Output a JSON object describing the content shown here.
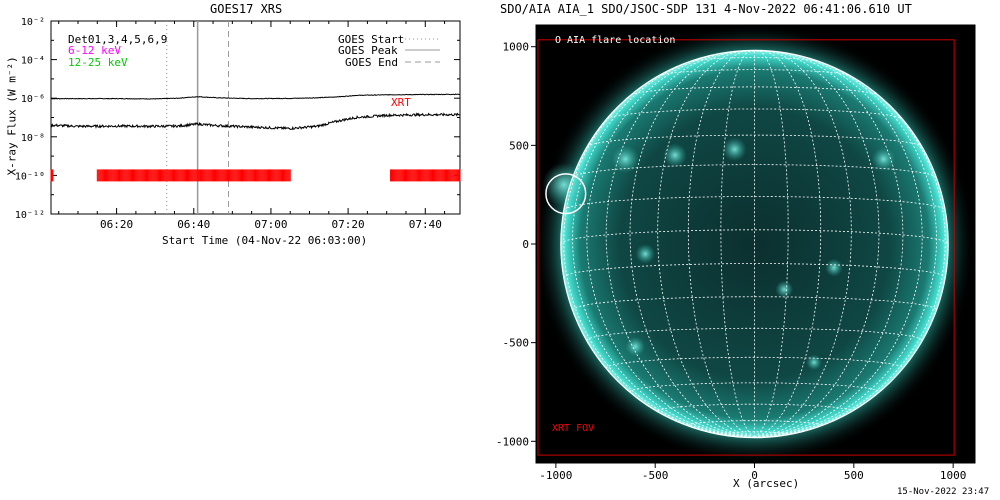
{
  "left_panel": {
    "title": "GOES17 XRS",
    "ylabel": "X-ray Flux (W m⁻²)",
    "xlabel": "Start Time (04-Nov-22 06:03:00)",
    "det_label": "Det01,3,4,5,6,9",
    "band_1": "6-12 keV",
    "band_2": "12-25 keV",
    "legend": {
      "start": "GOES Start",
      "peak": "GOES Peak",
      "end": "GOES End"
    },
    "xrt_label": "XRT"
  },
  "right_panel": {
    "title": "SDO/AIA AIA_1 SDO/JSOC-SDP 131  4-Nov-2022 06:41:06.610 UT",
    "flare_label": "O AIA flare location",
    "fov_label": "XRT FOV",
    "xlabel": "X (arcsec)"
  },
  "footer_timestamp": "15-Nov-2022 23:47",
  "colors": {
    "band_1": "#ff00ff",
    "band_2": "#00cc00",
    "xrt": "#ff0000",
    "sun_core": "#0a3a38",
    "sun_limb": "#3fd6c8"
  },
  "chart_data": [
    {
      "type": "line",
      "title": "GOES17 XRS",
      "xlabel": "Start Time (04-Nov-22 06:03:00)",
      "ylabel": "X-ray Flux (W m⁻²)",
      "yscale": "log",
      "xlim": [
        "06:03",
        "07:49"
      ],
      "ylim": [
        1e-12,
        0.01
      ],
      "x_ticks": [
        "06:20",
        "06:40",
        "07:00",
        "07:20",
        "07:40"
      ],
      "y_ticks": [
        "10⁻¹²",
        "10⁻¹⁰",
        "10⁻⁸",
        "10⁻⁶",
        "10⁻⁴",
        "10⁻²"
      ],
      "markers": {
        "goes_start": "06:33",
        "goes_peak": "06:41",
        "goes_end": "06:49"
      },
      "series": [
        {
          "x": [
            "06:03",
            "06:10",
            "06:20",
            "06:30",
            "06:36",
            "06:41",
            "06:46",
            "06:55",
            "07:05",
            "07:12",
            "07:18",
            "07:22",
            "07:30",
            "07:40",
            "07:49"
          ],
          "values": [
            9.5e-07,
            9.5e-07,
            9.5e-07,
            9.2e-07,
            1e-06,
            1.2e-06,
            1.05e-06,
            9.5e-07,
            9.8e-07,
            1.05e-06,
            1.2e-06,
            1.4e-06,
            1.5e-06,
            1.55e-06,
            1.6e-06
          ]
        },
        {
          "x": [
            "06:03",
            "06:10",
            "06:20",
            "06:30",
            "06:36",
            "06:41",
            "06:46",
            "06:55",
            "07:05",
            "07:12",
            "07:18",
            "07:22",
            "07:30",
            "07:40",
            "07:49"
          ],
          "values": [
            4e-08,
            3.5e-08,
            3.6e-08,
            3.5e-08,
            3.6e-08,
            4.6e-08,
            3.8e-08,
            3.2e-08,
            2.7e-08,
            3.5e-08,
            7e-08,
            1e-07,
            1.3e-07,
            1.4e-07,
            1.4e-07
          ]
        }
      ],
      "xrt_intervals": [
        {
          "start": "06:03",
          "end": "06:03:30"
        },
        {
          "start": "06:15",
          "end": "07:05"
        },
        {
          "start": "07:31",
          "end": "07:49"
        }
      ],
      "xrt_flux_level": 1e-10
    },
    {
      "type": "image",
      "title": "SDO/AIA AIA_1 SDO/JSOC-SDP 131  4-Nov-2022 06:41:06.610 UT",
      "xlabel": "X (arcsec)",
      "x_ticks": [
        -1000,
        -500,
        0,
        500,
        1000
      ],
      "y_ticks": [
        -1000,
        -500,
        0,
        500,
        1000
      ],
      "xlim": [
        -1100,
        1110
      ],
      "ylim": [
        -1110,
        1110
      ],
      "solar_radius_arcsec": 975,
      "grid_spacing_deg": 10,
      "flare_location": {
        "x": -950,
        "y": 255,
        "radius": 100
      },
      "xrt_fov": {
        "x": [
          -1090,
          1005
        ],
        "y": [
          -1070,
          1035
        ]
      }
    }
  ]
}
